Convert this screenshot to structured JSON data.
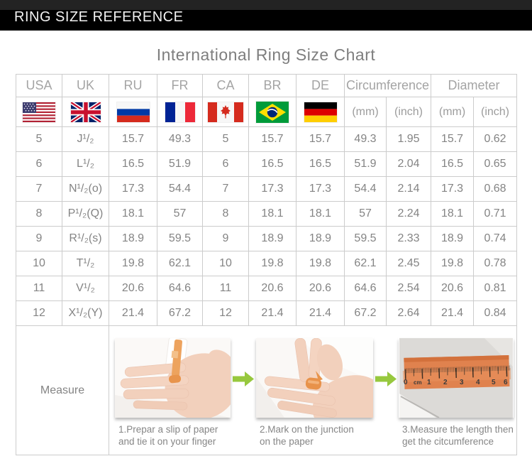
{
  "banner": {
    "title": "RING SIZE REFERENCE"
  },
  "page_title": "International Ring Size Chart",
  "table": {
    "country_columns": [
      "USA",
      "UK",
      "RU",
      "FR",
      "CA",
      "BR",
      "DE"
    ],
    "flags": [
      "us-flag",
      "uk-flag",
      "ru-flag",
      "fr-flag",
      "ca-flag",
      "br-flag",
      "de-flag"
    ],
    "group_headers": [
      {
        "label": "Circumference",
        "sub": [
          "(mm)",
          "(inch)"
        ]
      },
      {
        "label": "Diameter",
        "sub": [
          "(mm)",
          "(inch)"
        ]
      }
    ]
  },
  "chart_data": {
    "type": "table",
    "title": "International Ring Size Chart",
    "columns": [
      "USA",
      "UK",
      "RU",
      "FR",
      "CA",
      "BR",
      "DE",
      "Circumference (mm)",
      "Circumference (inch)",
      "Diameter (mm)",
      "Diameter (inch)"
    ],
    "rows": [
      [
        "5",
        "J¹/₂",
        "15.7",
        "49.3",
        "5",
        "15.7",
        "15.7",
        "49.3",
        "1.95",
        "15.7",
        "0.62"
      ],
      [
        "6",
        "L¹/₂",
        "16.5",
        "51.9",
        "6",
        "16.5",
        "16.5",
        "51.9",
        "2.04",
        "16.5",
        "0.65"
      ],
      [
        "7",
        "N¹/₂(o)",
        "17.3",
        "54.4",
        "7",
        "17.3",
        "17.3",
        "54.4",
        "2.14",
        "17.3",
        "0.68"
      ],
      [
        "8",
        "P¹/₂(Q)",
        "18.1",
        "57",
        "8",
        "18.1",
        "18.1",
        "57",
        "2.24",
        "18.1",
        "0.71"
      ],
      [
        "9",
        "R¹/₂(s)",
        "18.9",
        "59.5",
        "9",
        "18.9",
        "18.9",
        "59.5",
        "2.33",
        "18.9",
        "0.74"
      ],
      [
        "10",
        "T¹/₂",
        "19.8",
        "62.1",
        "10",
        "19.8",
        "19.8",
        "62.1",
        "2.45",
        "19.8",
        "0.78"
      ],
      [
        "11",
        "V¹/₂",
        "20.6",
        "64.6",
        "11",
        "20.6",
        "20.6",
        "64.6",
        "2.54",
        "20.6",
        "0.81"
      ],
      [
        "12",
        "X¹/₂(Y)",
        "21.4",
        "67.2",
        "12",
        "21.4",
        "21.4",
        "67.2",
        "2.64",
        "21.4",
        "0.84"
      ]
    ]
  },
  "measure": {
    "label": "Measure",
    "steps": [
      {
        "illustration": "hand-with-paper-strip",
        "caption_line1": "1.Prepar a slip of paper",
        "caption_line2": "and tie it on your finger"
      },
      {
        "illustration": "mark-junction-on-paper",
        "caption_line1": "2.Mark on the junction",
        "caption_line2": "on the paper"
      },
      {
        "illustration": "ruler-measuring-strip",
        "caption_line1": "3.Measure the length then",
        "caption_line2": "get the citcumference"
      }
    ],
    "ruler_labels": [
      "0",
      "cm",
      "1",
      "2",
      "3",
      "4",
      "5",
      "6"
    ]
  },
  "colors": {
    "banner_bg": "#000000",
    "title_text": "#7e7e7e",
    "table_text": "#848484",
    "table_border": "#cccccc",
    "arrow_green": "#97c83e",
    "paper_strip_orange": "#e0824e"
  }
}
